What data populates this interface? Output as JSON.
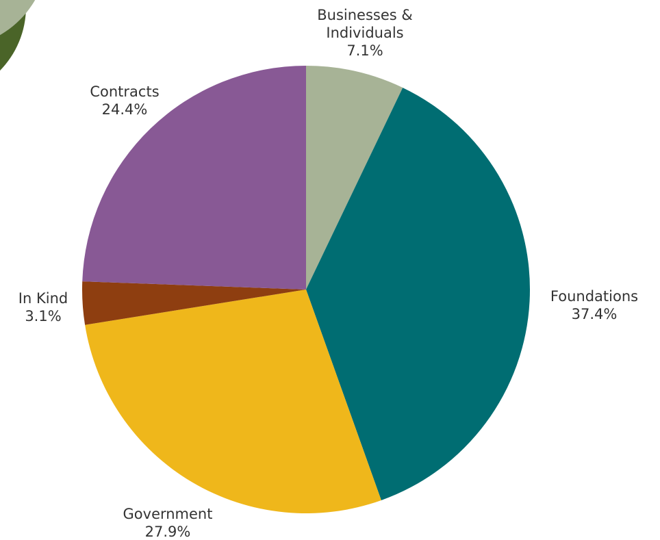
{
  "colors": {
    "background": "#ffffff",
    "decor_dark_green": "#4a6428",
    "decor_sage": "#a7b396",
    "label_text": "#333333"
  },
  "chart_data": {
    "type": "pie",
    "title": "",
    "start_angle_deg": 0,
    "direction": "clockwise",
    "slices": [
      {
        "label_lines": [
          "Businesses &",
          "Individuals"
        ],
        "value": 7.1,
        "display": "7.1%",
        "color": "#a7b396"
      },
      {
        "label_lines": [
          "Foundations"
        ],
        "value": 37.4,
        "display": "37.4%",
        "color": "#006d72"
      },
      {
        "label_lines": [
          "Government"
        ],
        "value": 27.9,
        "display": "27.9%",
        "color": "#efb71b"
      },
      {
        "label_lines": [
          "In Kind"
        ],
        "value": 3.1,
        "display": "3.1%",
        "color": "#8e3e10"
      },
      {
        "label_lines": [
          "Contracts"
        ],
        "value": 24.4,
        "display": "24.4%",
        "color": "#885995"
      }
    ]
  }
}
